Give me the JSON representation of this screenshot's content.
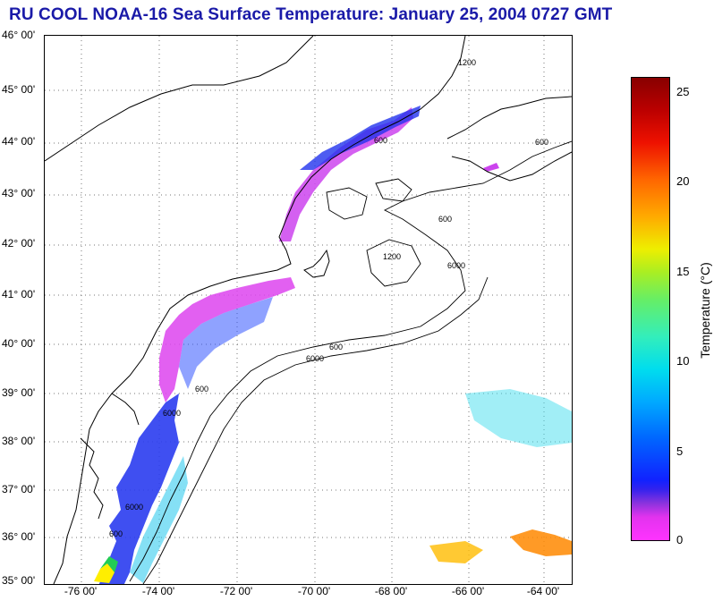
{
  "title": "RU COOL  NOAA-16  Sea Surface Temperature:  January 25, 2004 0727 GMT",
  "lat_labels": [
    "46° 00'",
    "45° 00'",
    "44° 00'",
    "43° 00'",
    "42° 00'",
    "41° 00'",
    "40° 00'",
    "39° 00'",
    "38° 00'",
    "37° 00'",
    "36° 00'",
    "35° 00'"
  ],
  "lon_labels": [
    "-76 00'",
    "-74 00'",
    "-72 00'",
    "-70 00'",
    "-68 00'",
    "-66 00'",
    "-64 00'"
  ],
  "contour_labels": [
    "600",
    "6000",
    "1200"
  ],
  "colorbar": {
    "label": "Temperature (°C)",
    "ticks": [
      "25",
      "20",
      "15",
      "10",
      "5",
      "0"
    ],
    "range": [
      0,
      26
    ]
  },
  "colors": {
    "title": "#1a1aa8",
    "land_line": "#000000",
    "grid": "#666666"
  }
}
